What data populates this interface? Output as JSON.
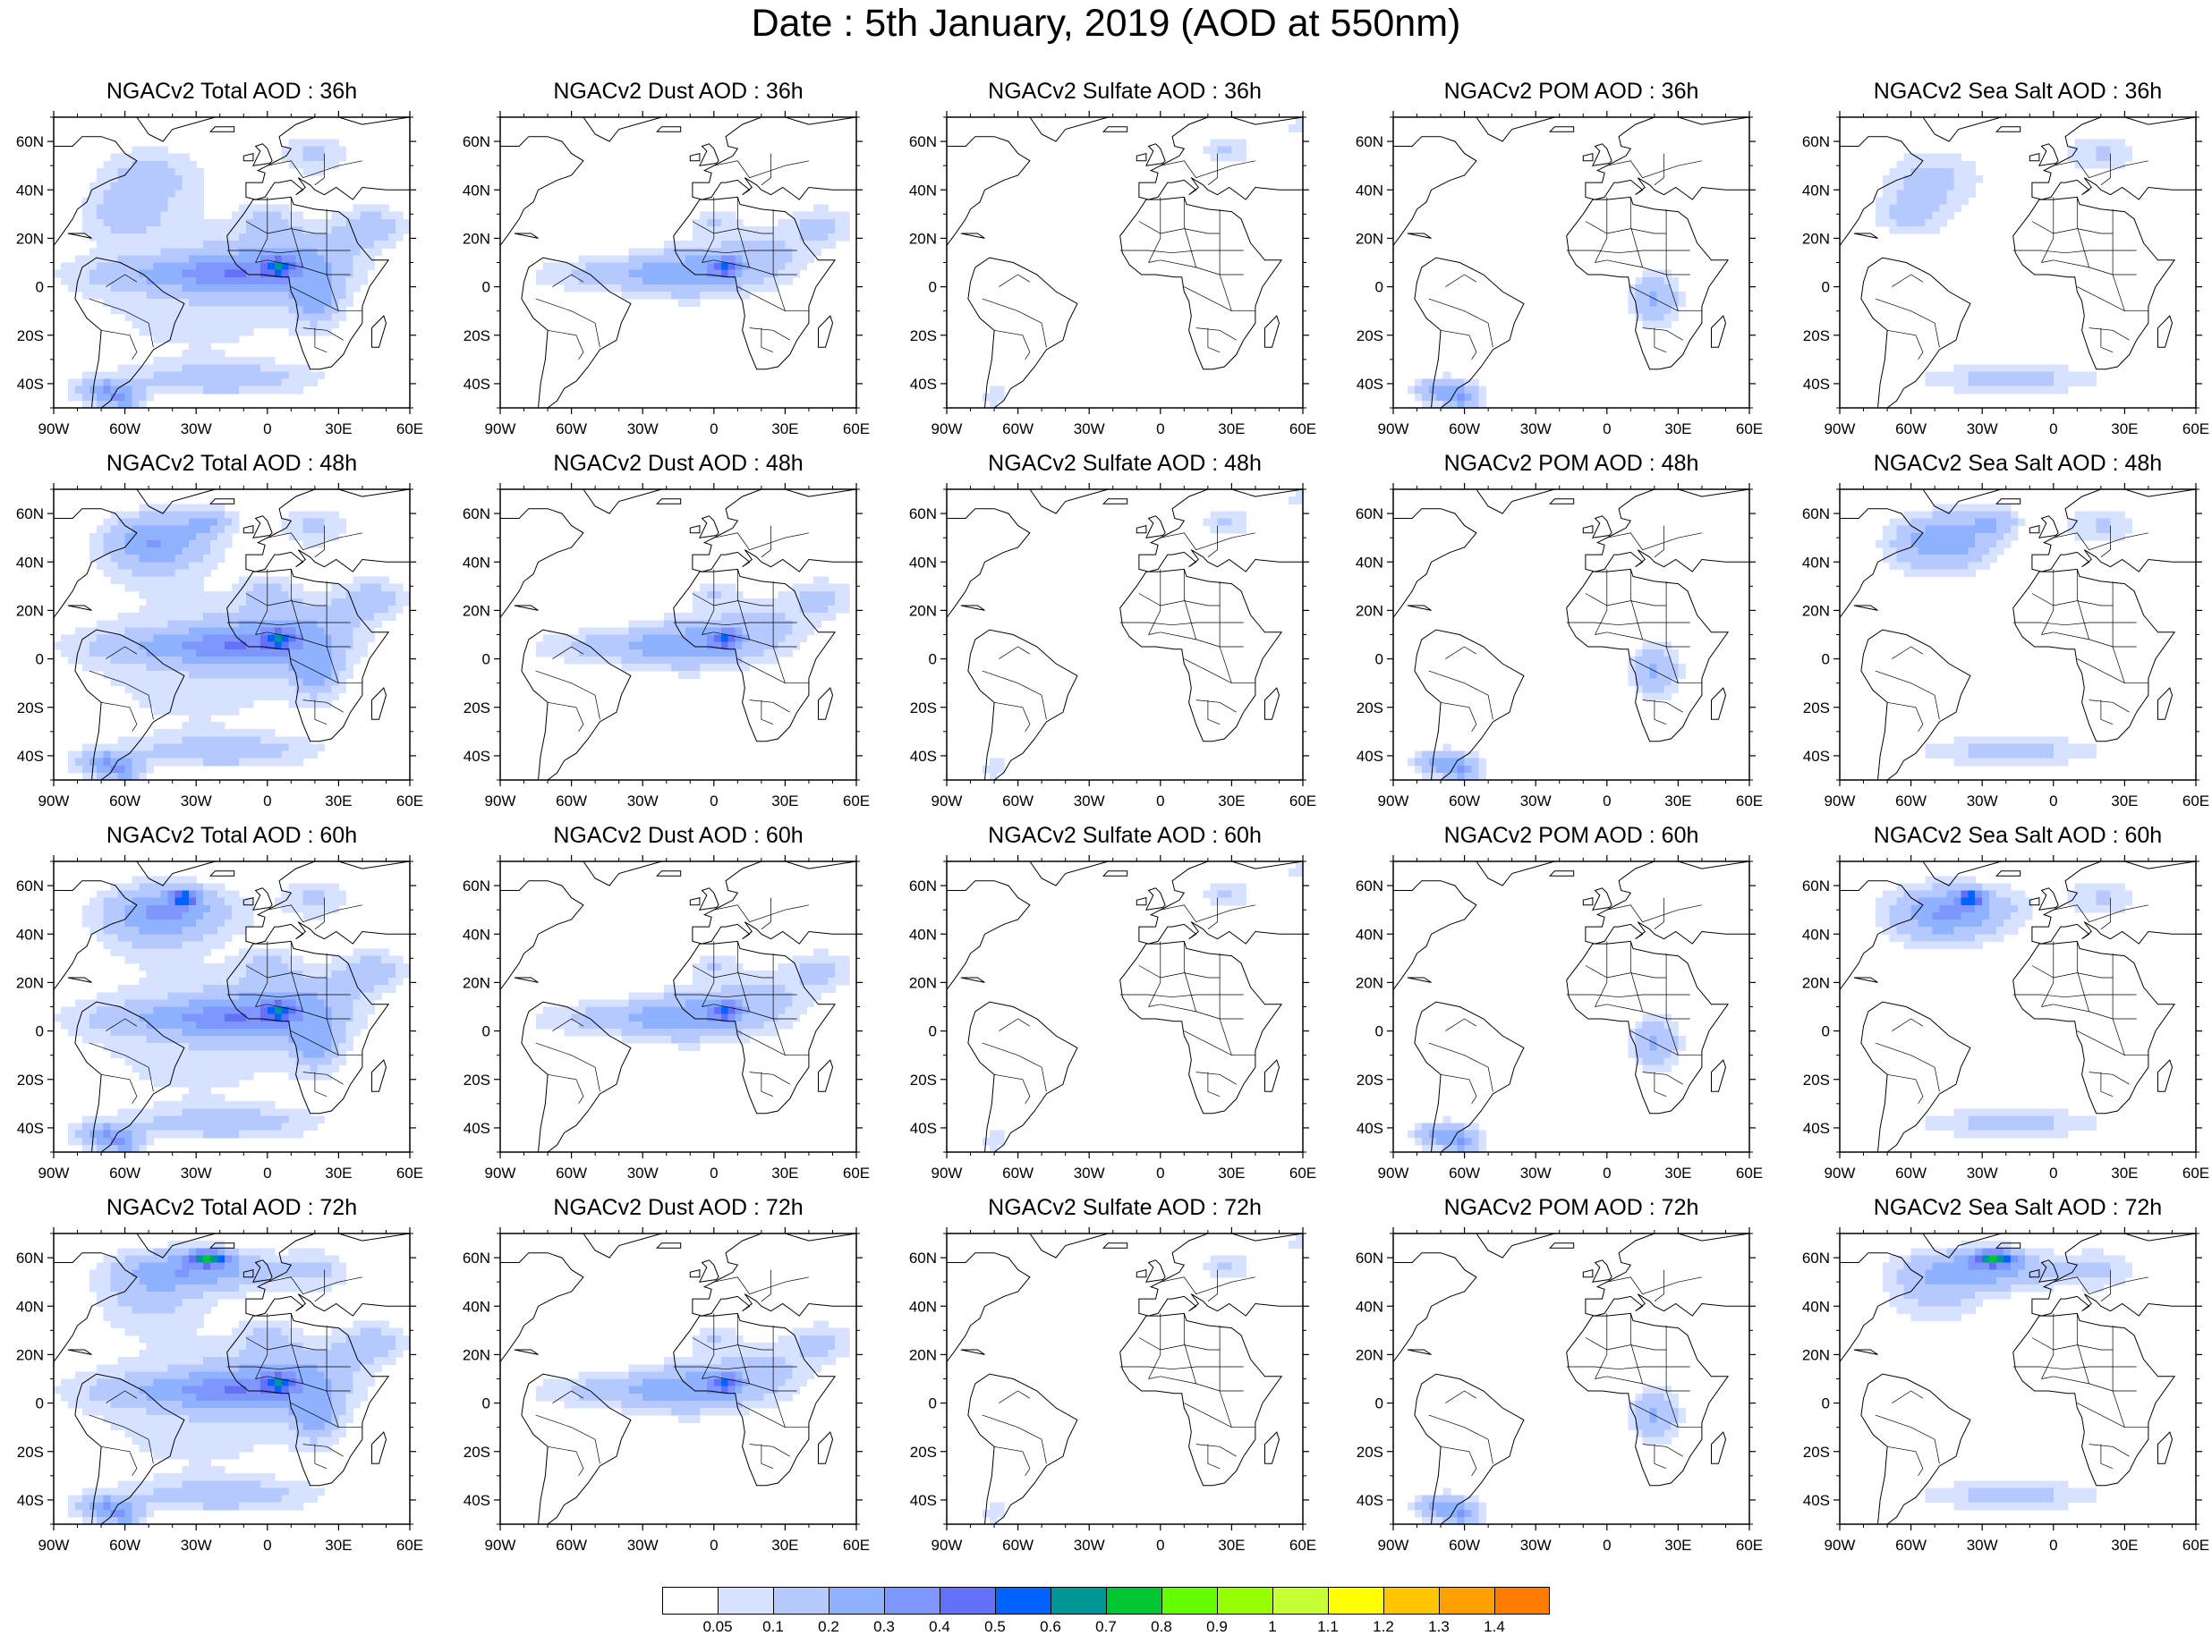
{
  "title": "Date : 5th January, 2019 (AOD at 550nm)",
  "panel_titles": [
    [
      "NGACv2 Total AOD : 36h",
      "NGACv2 Dust AOD : 36h",
      "NGACv2 Sulfate AOD : 36h",
      "NGACv2 POM AOD : 36h",
      "NGACv2 Sea Salt AOD : 36h"
    ],
    [
      "NGACv2 Total AOD : 48h",
      "NGACv2 Dust AOD : 48h",
      "NGACv2 Sulfate AOD : 48h",
      "NGACv2 POM AOD : 48h",
      "NGACv2 Sea Salt AOD : 48h"
    ],
    [
      "NGACv2 Total AOD : 60h",
      "NGACv2 Dust AOD : 60h",
      "NGACv2 Sulfate AOD : 60h",
      "NGACv2 POM AOD : 60h",
      "NGACv2 Sea Salt AOD : 60h"
    ],
    [
      "NGACv2 Total AOD : 72h",
      "NGACv2 Dust AOD : 72h",
      "NGACv2 Sulfate AOD : 72h",
      "NGACv2 POM AOD : 72h",
      "NGACv2 Sea Salt  AOD : 72h"
    ]
  ],
  "axes": {
    "lon_ticks": [
      "90W",
      "60W",
      "30W",
      "0",
      "30E",
      "60E"
    ],
    "lat_ticks": [
      "60N",
      "40N",
      "20N",
      "0",
      "20S",
      "40S"
    ],
    "lon_range": [
      -90,
      60
    ],
    "lat_range": [
      -50,
      70
    ]
  },
  "colorbar": {
    "labels": [
      "0.05",
      "0.1",
      "0.2",
      "0.3",
      "0.4",
      "0.5",
      "0.6",
      "0.7",
      "0.8",
      "0.9",
      "1",
      "1.1",
      "1.2",
      "1.3",
      "1.4"
    ],
    "colors": [
      "#ffffff",
      "#d6e2ff",
      "#b5c9ff",
      "#8eb2ff",
      "#7f96ff",
      "#6370f8",
      "#0063ff",
      "#009696",
      "#00c633",
      "#63ff00",
      "#96ff00",
      "#c6ff33",
      "#ffff00",
      "#ffc600",
      "#ffa000",
      "#ff7c00",
      "#ff1900"
    ]
  }
}
